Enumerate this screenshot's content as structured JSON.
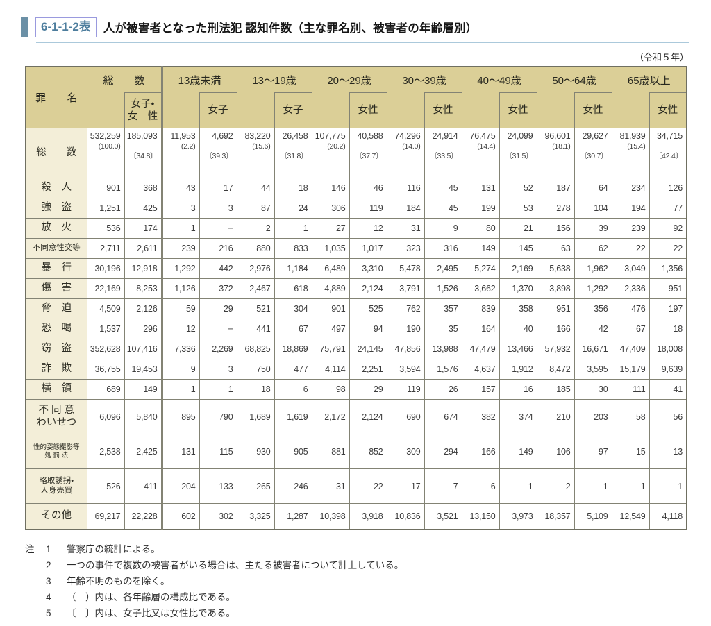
{
  "header": {
    "code": "6-1-1-2表",
    "title": "人が被害者となった刑法犯 認知件数（主な罪名別、被害者の年齢層別）"
  },
  "page": {
    "era_label": "（令和５年）"
  },
  "table": {
    "corner_label": {
      "left": "罪",
      "right": "名"
    },
    "col_groups": [
      {
        "label": "総　　数",
        "sub": "女子・\n女　性"
      },
      {
        "label": "13歳未満",
        "sub": "女子"
      },
      {
        "label": "13〜19歳",
        "sub": "女子"
      },
      {
        "label": "20〜29歳",
        "sub": "女性"
      },
      {
        "label": "30〜39歳",
        "sub": "女性"
      },
      {
        "label": "40〜49歳",
        "sub": "女性"
      },
      {
        "label": "50〜64歳",
        "sub": "女性"
      },
      {
        "label": "65歳以上",
        "sub": "女性"
      }
    ],
    "totals_row": {
      "label": "総　　数",
      "cells": [
        {
          "n": "532,259",
          "pct": "(100.0)",
          "ratio": ""
        },
        {
          "n": "185,093",
          "pct": "",
          "ratio": "〔34.8〕"
        },
        {
          "n": "11,953",
          "pct": "(2.2)",
          "ratio": ""
        },
        {
          "n": "4,692",
          "pct": "",
          "ratio": "〔39.3〕"
        },
        {
          "n": "83,220",
          "pct": "(15.6)",
          "ratio": ""
        },
        {
          "n": "26,458",
          "pct": "",
          "ratio": "〔31.8〕"
        },
        {
          "n": "107,775",
          "pct": "(20.2)",
          "ratio": ""
        },
        {
          "n": "40,588",
          "pct": "",
          "ratio": "〔37.7〕"
        },
        {
          "n": "74,296",
          "pct": "(14.0)",
          "ratio": ""
        },
        {
          "n": "24,914",
          "pct": "",
          "ratio": "〔33.5〕"
        },
        {
          "n": "76,475",
          "pct": "(14.4)",
          "ratio": ""
        },
        {
          "n": "24,099",
          "pct": "",
          "ratio": "〔31.5〕"
        },
        {
          "n": "96,601",
          "pct": "(18.1)",
          "ratio": ""
        },
        {
          "n": "29,627",
          "pct": "",
          "ratio": "〔30.7〕"
        },
        {
          "n": "81,939",
          "pct": "(15.4)",
          "ratio": ""
        },
        {
          "n": "34,715",
          "pct": "",
          "ratio": "〔42.4〕"
        }
      ]
    },
    "rows": [
      {
        "label": "殺　人",
        "cells": [
          "901",
          "368",
          "43",
          "17",
          "44",
          "18",
          "146",
          "46",
          "116",
          "45",
          "131",
          "52",
          "187",
          "64",
          "234",
          "126"
        ]
      },
      {
        "label": "強　盗",
        "cells": [
          "1,251",
          "425",
          "3",
          "3",
          "87",
          "24",
          "306",
          "119",
          "184",
          "45",
          "199",
          "53",
          "278",
          "104",
          "194",
          "77"
        ]
      },
      {
        "label": "放　火",
        "cells": [
          "536",
          "174",
          "1",
          "−",
          "2",
          "1",
          "27",
          "12",
          "31",
          "9",
          "80",
          "21",
          "156",
          "39",
          "239",
          "92"
        ]
      },
      {
        "label": "不同意性交等",
        "cells": [
          "2,711",
          "2,611",
          "239",
          "216",
          "880",
          "833",
          "1,035",
          "1,017",
          "323",
          "316",
          "149",
          "145",
          "63",
          "62",
          "22",
          "22"
        ]
      },
      {
        "label": "暴　行",
        "cells": [
          "30,196",
          "12,918",
          "1,292",
          "442",
          "2,976",
          "1,184",
          "6,489",
          "3,310",
          "5,478",
          "2,495",
          "5,274",
          "2,169",
          "5,638",
          "1,962",
          "3,049",
          "1,356"
        ]
      },
      {
        "label": "傷　害",
        "cells": [
          "22,169",
          "8,253",
          "1,126",
          "372",
          "2,467",
          "618",
          "4,889",
          "2,124",
          "3,791",
          "1,526",
          "3,662",
          "1,370",
          "3,898",
          "1,292",
          "2,336",
          "951"
        ]
      },
      {
        "label": "脅　迫",
        "cells": [
          "4,509",
          "2,126",
          "59",
          "29",
          "521",
          "304",
          "901",
          "525",
          "762",
          "357",
          "839",
          "358",
          "951",
          "356",
          "476",
          "197"
        ]
      },
      {
        "label": "恐　喝",
        "cells": [
          "1,537",
          "296",
          "12",
          "−",
          "441",
          "67",
          "497",
          "94",
          "190",
          "35",
          "164",
          "40",
          "166",
          "42",
          "67",
          "18"
        ]
      },
      {
        "label": "窃　盗",
        "cells": [
          "352,628",
          "107,416",
          "7,336",
          "2,269",
          "68,825",
          "18,869",
          "75,791",
          "24,145",
          "47,856",
          "13,988",
          "47,479",
          "13,466",
          "57,932",
          "16,671",
          "47,409",
          "18,008"
        ]
      },
      {
        "label": "詐　欺",
        "cells": [
          "36,755",
          "19,453",
          "9",
          "3",
          "750",
          "477",
          "4,114",
          "2,251",
          "3,594",
          "1,576",
          "4,637",
          "1,912",
          "8,472",
          "3,595",
          "15,179",
          "9,639"
        ]
      },
      {
        "label": "横　領",
        "cells": [
          "689",
          "149",
          "1",
          "1",
          "18",
          "6",
          "98",
          "29",
          "119",
          "26",
          "157",
          "16",
          "185",
          "30",
          "111",
          "41"
        ]
      },
      {
        "label": "不 同 意\nわいせつ",
        "cells": [
          "6,096",
          "5,840",
          "895",
          "790",
          "1,689",
          "1,619",
          "2,172",
          "2,124",
          "690",
          "674",
          "382",
          "374",
          "210",
          "203",
          "58",
          "56"
        ]
      },
      {
        "label": "性的姿態撮影等\n処 罰 法",
        "cells": [
          "2,538",
          "2,425",
          "131",
          "115",
          "930",
          "905",
          "881",
          "852",
          "309",
          "294",
          "166",
          "149",
          "106",
          "97",
          "15",
          "13"
        ]
      },
      {
        "label": "略取誘拐・\n人身売買",
        "cells": [
          "526",
          "411",
          "204",
          "133",
          "265",
          "246",
          "31",
          "22",
          "17",
          "7",
          "6",
          "1",
          "2",
          "1",
          "1",
          "1"
        ]
      },
      {
        "label": "その他",
        "cells": [
          "69,217",
          "22,228",
          "602",
          "302",
          "3,325",
          "1,287",
          "10,398",
          "3,918",
          "10,836",
          "3,521",
          "13,150",
          "3,973",
          "18,357",
          "5,109",
          "12,549",
          "4,118"
        ]
      }
    ]
  },
  "notes": {
    "marker": "注",
    "items": [
      {
        "no": "1",
        "text": "警察庁の統計による。"
      },
      {
        "no": "2",
        "text": "一つの事件で複数の被害者がいる場合は、主たる被害者について計上している。"
      },
      {
        "no": "3",
        "text": "年齢不明のものを除く。"
      },
      {
        "no": "4",
        "text": "（　）内は、各年齢層の構成比である。"
      },
      {
        "no": "5",
        "text": "〔　〕内は、女子比又は女性比である。"
      }
    ]
  }
}
